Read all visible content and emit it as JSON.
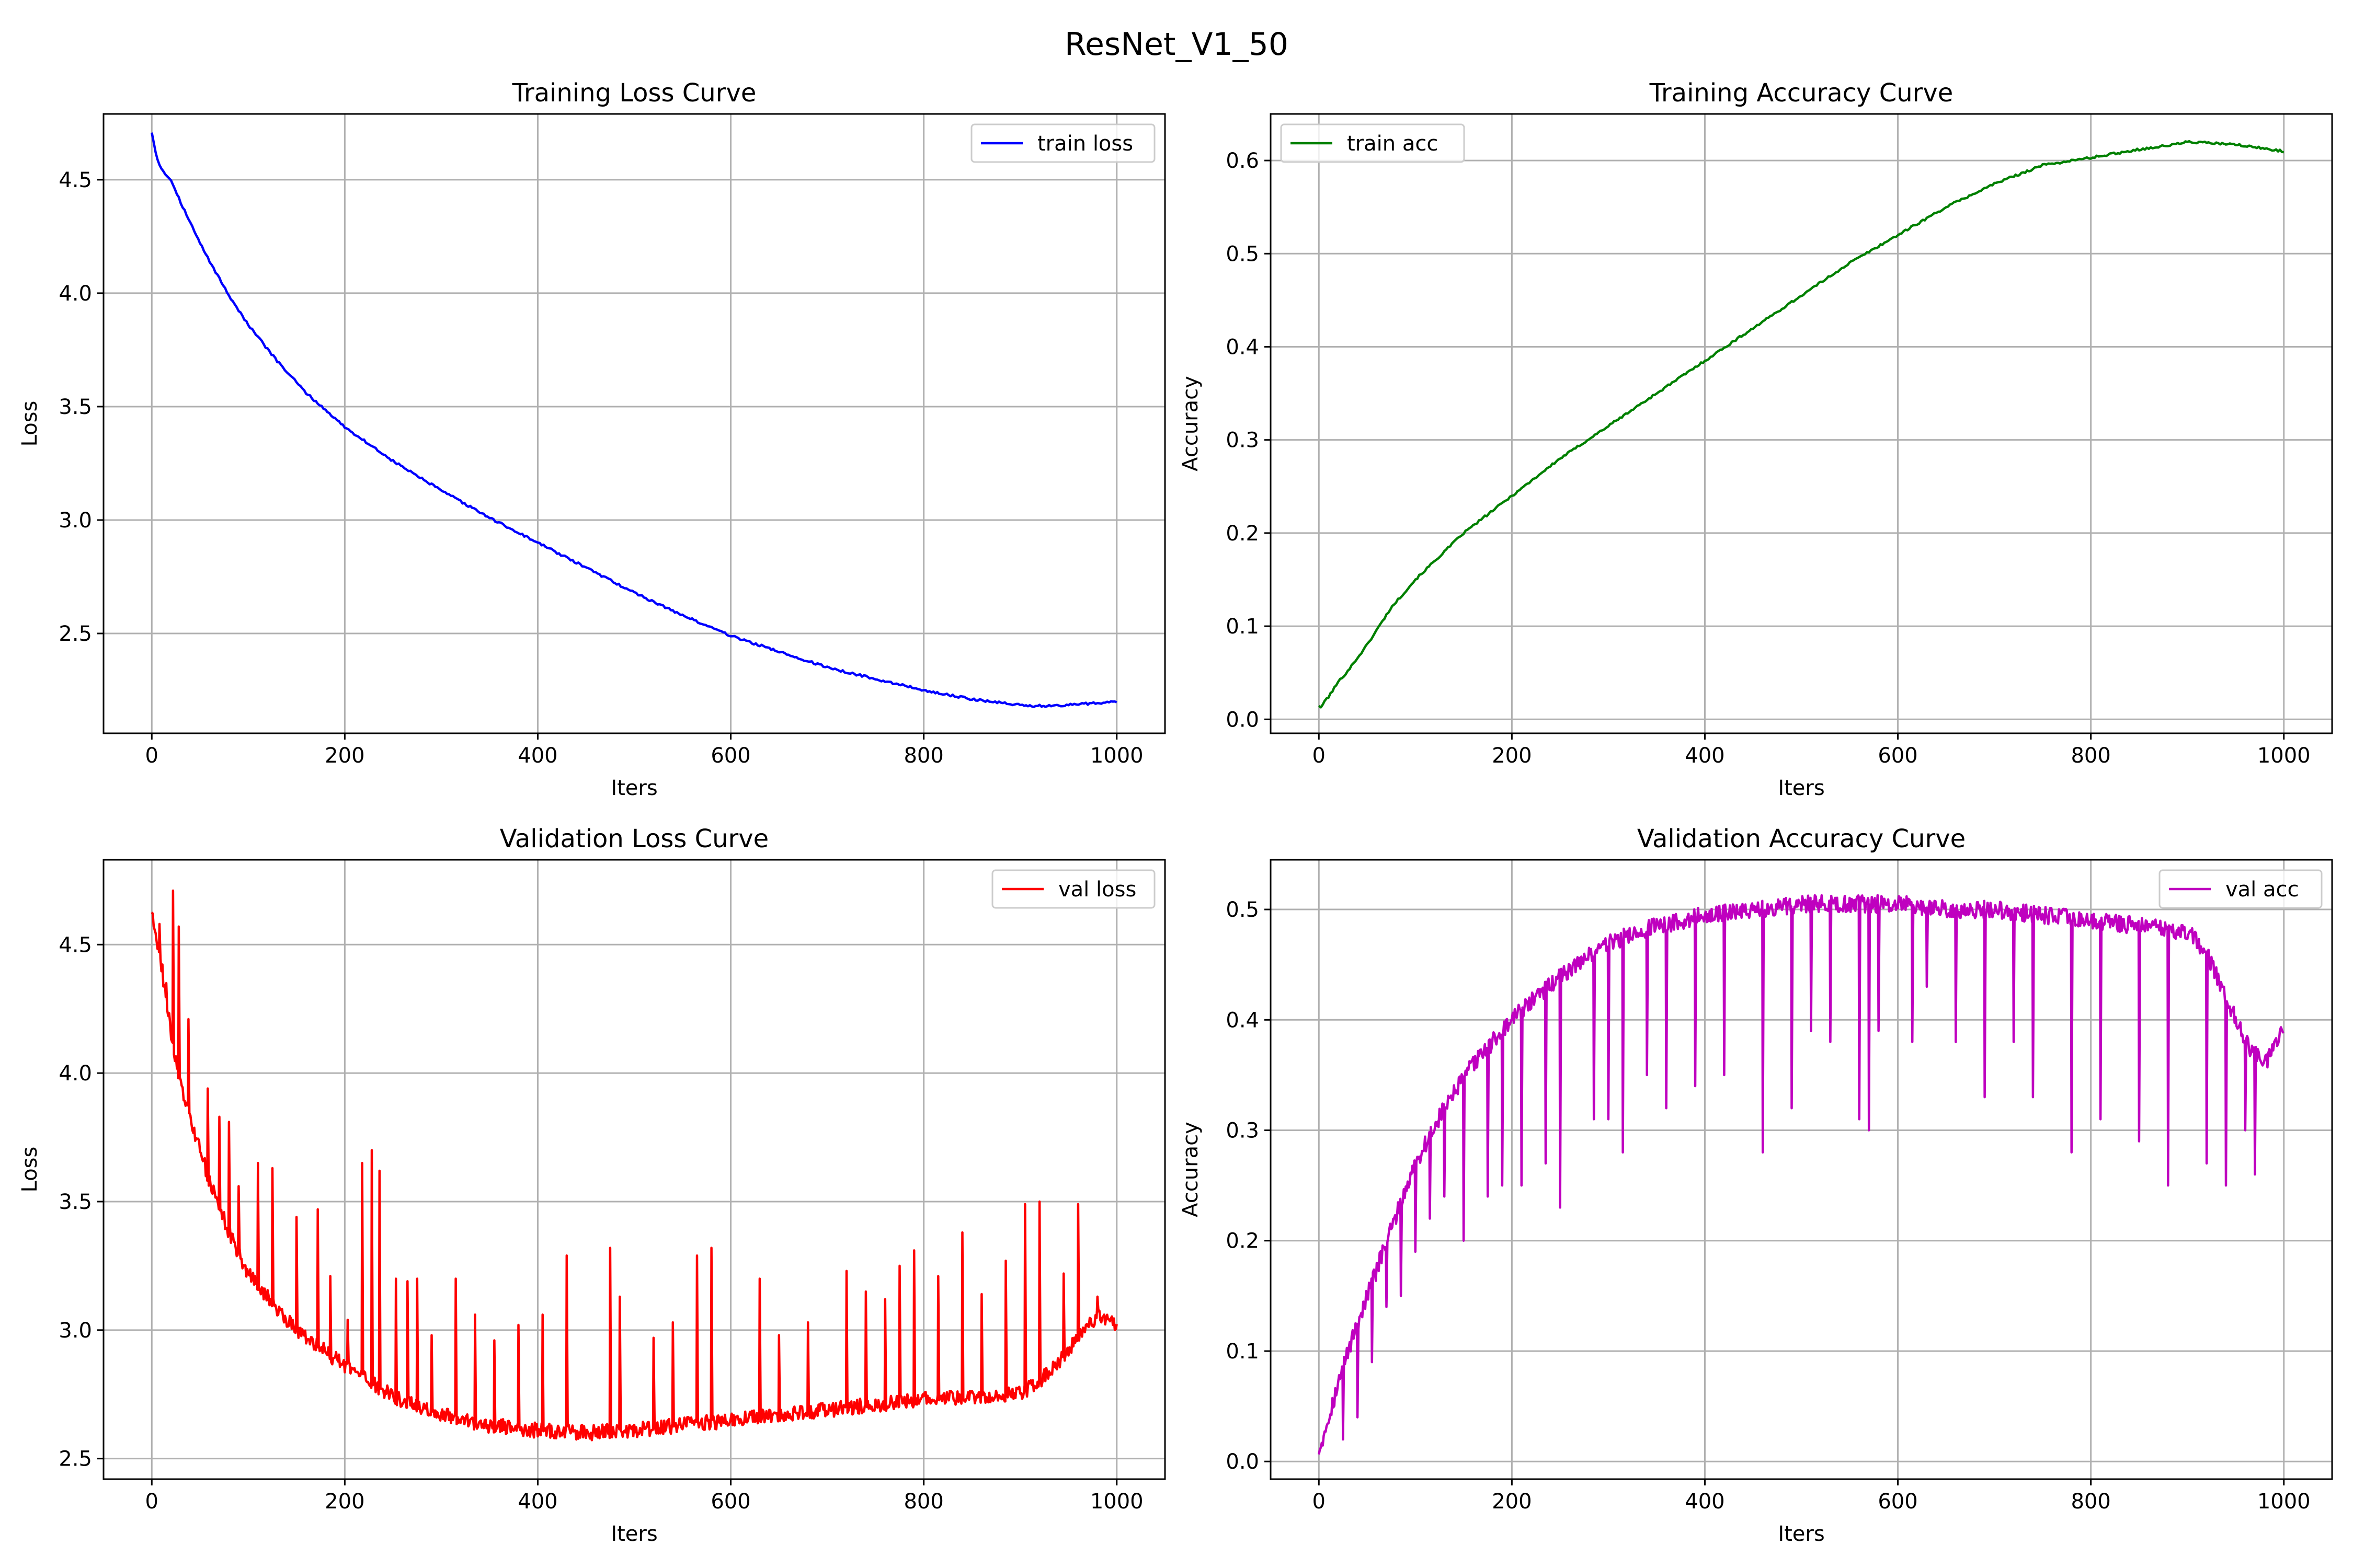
{
  "figure": {
    "title": "ResNet_V1_50"
  },
  "chart_data": [
    {
      "type": "line",
      "title": "Training Loss Curve",
      "xlabel": "Iters",
      "ylabel": "Loss",
      "xlim": [
        -50,
        1050
      ],
      "ylim": [
        2.06,
        4.79
      ],
      "xticks": [
        0,
        200,
        400,
        600,
        800,
        1000
      ],
      "yticks": [
        2.5,
        3.0,
        3.5,
        4.0,
        4.5
      ],
      "ytick_labels": [
        "2.5",
        "3.0",
        "3.5",
        "4.0",
        "4.5"
      ],
      "grid": true,
      "legend_position": "upper right",
      "series": [
        {
          "name": "train loss",
          "color": "#0000ff",
          "kind": "smooth",
          "x": [
            0,
            5,
            10,
            15,
            20,
            30,
            40,
            50,
            60,
            80,
            100,
            130,
            160,
            200,
            250,
            300,
            350,
            400,
            450,
            500,
            550,
            600,
            650,
            700,
            750,
            800,
            850,
            900,
            910,
            950,
            1000
          ],
          "values": [
            4.71,
            4.6,
            4.55,
            4.52,
            4.5,
            4.4,
            4.31,
            4.22,
            4.14,
            3.99,
            3.86,
            3.7,
            3.56,
            3.41,
            3.26,
            3.13,
            3.01,
            2.9,
            2.79,
            2.68,
            2.58,
            2.49,
            2.42,
            2.35,
            2.3,
            2.25,
            2.21,
            2.185,
            2.18,
            2.185,
            2.2
          ]
        }
      ]
    },
    {
      "type": "line",
      "title": "Training Accuracy Curve",
      "xlabel": "Iters",
      "ylabel": "Accuracy",
      "xlim": [
        -50,
        1050
      ],
      "ylim": [
        -0.015,
        0.65
      ],
      "xticks": [
        0,
        200,
        400,
        600,
        800,
        1000
      ],
      "yticks": [
        0.0,
        0.1,
        0.2,
        0.3,
        0.4,
        0.5,
        0.6
      ],
      "ytick_labels": [
        "0.0",
        "0.1",
        "0.2",
        "0.3",
        "0.4",
        "0.5",
        "0.6"
      ],
      "grid": true,
      "legend_position": "upper left",
      "series": [
        {
          "name": "train acc",
          "color": "#008000",
          "kind": "smooth",
          "x": [
            0,
            3,
            6,
            10,
            20,
            30,
            50,
            75,
            100,
            150,
            200,
            250,
            300,
            350,
            400,
            450,
            500,
            550,
            600,
            650,
            700,
            750,
            800,
            850,
            880,
            900,
            920,
            950,
            1000
          ],
          "values": [
            0.015,
            0.012,
            0.02,
            0.024,
            0.04,
            0.052,
            0.08,
            0.12,
            0.15,
            0.2,
            0.24,
            0.28,
            0.315,
            0.35,
            0.385,
            0.42,
            0.455,
            0.49,
            0.52,
            0.55,
            0.575,
            0.595,
            0.603,
            0.612,
            0.616,
            0.62,
            0.619,
            0.617,
            0.61
          ]
        }
      ]
    },
    {
      "type": "line",
      "title": "Validation Loss Curve",
      "xlabel": "Iters",
      "ylabel": "Loss",
      "xlim": [
        -50,
        1050
      ],
      "ylim": [
        2.42,
        4.83
      ],
      "xticks": [
        0,
        200,
        400,
        600,
        800,
        1000
      ],
      "yticks": [
        2.5,
        3.0,
        3.5,
        4.0,
        4.5
      ],
      "ytick_labels": [
        "2.5",
        "3.0",
        "3.5",
        "4.0",
        "4.5"
      ],
      "grid": true,
      "legend_position": "upper right",
      "series": [
        {
          "name": "val loss",
          "color": "#ff0000",
          "kind": "noisy-spiky",
          "base_x": [
            0,
            10,
            20,
            30,
            40,
            60,
            80,
            100,
            130,
            160,
            200,
            250,
            300,
            350,
            400,
            450,
            500,
            550,
            600,
            650,
            700,
            750,
            800,
            850,
            900,
            920,
            940,
            960,
            980,
            1000
          ],
          "base_values": [
            4.64,
            4.42,
            4.15,
            3.95,
            3.82,
            3.58,
            3.38,
            3.22,
            3.08,
            2.97,
            2.86,
            2.74,
            2.67,
            2.63,
            2.61,
            2.6,
            2.61,
            2.63,
            2.65,
            2.67,
            2.69,
            2.71,
            2.73,
            2.74,
            2.75,
            2.8,
            2.88,
            2.97,
            3.05,
            3.02
          ],
          "noise_amplitude": 0.03,
          "spikes_x": [
            8,
            15,
            22,
            28,
            38,
            58,
            70,
            80,
            90,
            110,
            125,
            150,
            172,
            185,
            203,
            218,
            228,
            236,
            253,
            265,
            275,
            290,
            315,
            335,
            355,
            380,
            405,
            430,
            475,
            485,
            520,
            540,
            565,
            580,
            630,
            650,
            680,
            720,
            740,
            760,
            775,
            790,
            815,
            840,
            860,
            885,
            905,
            920,
            945,
            960,
            980
          ],
          "spikes_values": [
            4.58,
            4.35,
            4.71,
            4.57,
            4.21,
            3.94,
            3.83,
            3.81,
            3.56,
            3.65,
            3.63,
            3.44,
            3.47,
            3.21,
            3.04,
            3.65,
            3.7,
            3.62,
            3.2,
            3.19,
            3.2,
            2.98,
            3.2,
            3.06,
            2.96,
            3.02,
            3.06,
            3.29,
            3.32,
            3.13,
            2.97,
            3.03,
            3.29,
            3.32,
            3.2,
            2.98,
            3.03,
            3.23,
            3.15,
            3.12,
            3.25,
            3.31,
            3.21,
            3.38,
            3.14,
            3.27,
            3.49,
            3.5,
            3.22,
            3.49,
            3.13
          ]
        }
      ]
    },
    {
      "type": "line",
      "title": "Validation Accuracy Curve",
      "xlabel": "Iters",
      "ylabel": "Accuracy",
      "xlim": [
        -50,
        1050
      ],
      "ylim": [
        -0.016,
        0.545
      ],
      "xticks": [
        0,
        200,
        400,
        600,
        800,
        1000
      ],
      "yticks": [
        0.0,
        0.1,
        0.2,
        0.3,
        0.4,
        0.5
      ],
      "ytick_labels": [
        "0.0",
        "0.1",
        "0.2",
        "0.3",
        "0.4",
        "0.5"
      ],
      "grid": true,
      "legend_position": "upper right",
      "series": [
        {
          "name": "val acc",
          "color": "#bf00bf",
          "kind": "noisy-dippy",
          "base_x": [
            0,
            10,
            20,
            30,
            50,
            75,
            100,
            130,
            160,
            200,
            250,
            300,
            350,
            400,
            450,
            500,
            550,
            600,
            650,
            700,
            750,
            800,
            850,
            900,
            920,
            940,
            960,
            980,
            1000
          ],
          "base_values": [
            0.01,
            0.04,
            0.07,
            0.1,
            0.15,
            0.21,
            0.27,
            0.32,
            0.36,
            0.4,
            0.44,
            0.47,
            0.485,
            0.495,
            0.5,
            0.505,
            0.505,
            0.505,
            0.5,
            0.5,
            0.495,
            0.49,
            0.485,
            0.48,
            0.46,
            0.42,
            0.38,
            0.36,
            0.39
          ],
          "noise_amplitude": 0.008,
          "dips_x": [
            25,
            40,
            55,
            70,
            85,
            100,
            115,
            130,
            150,
            175,
            190,
            210,
            235,
            250,
            285,
            300,
            315,
            340,
            360,
            390,
            420,
            460,
            490,
            510,
            530,
            560,
            570,
            580,
            615,
            630,
            660,
            690,
            720,
            740,
            780,
            810,
            850,
            880,
            920,
            940,
            960,
            970
          ],
          "dips_values": [
            0.02,
            0.04,
            0.09,
            0.14,
            0.15,
            0.19,
            0.22,
            0.24,
            0.2,
            0.24,
            0.25,
            0.25,
            0.27,
            0.23,
            0.31,
            0.31,
            0.28,
            0.35,
            0.32,
            0.34,
            0.35,
            0.28,
            0.32,
            0.39,
            0.38,
            0.31,
            0.3,
            0.39,
            0.38,
            0.43,
            0.38,
            0.33,
            0.38,
            0.33,
            0.28,
            0.31,
            0.29,
            0.25,
            0.27,
            0.25,
            0.3,
            0.26
          ]
        }
      ]
    }
  ]
}
